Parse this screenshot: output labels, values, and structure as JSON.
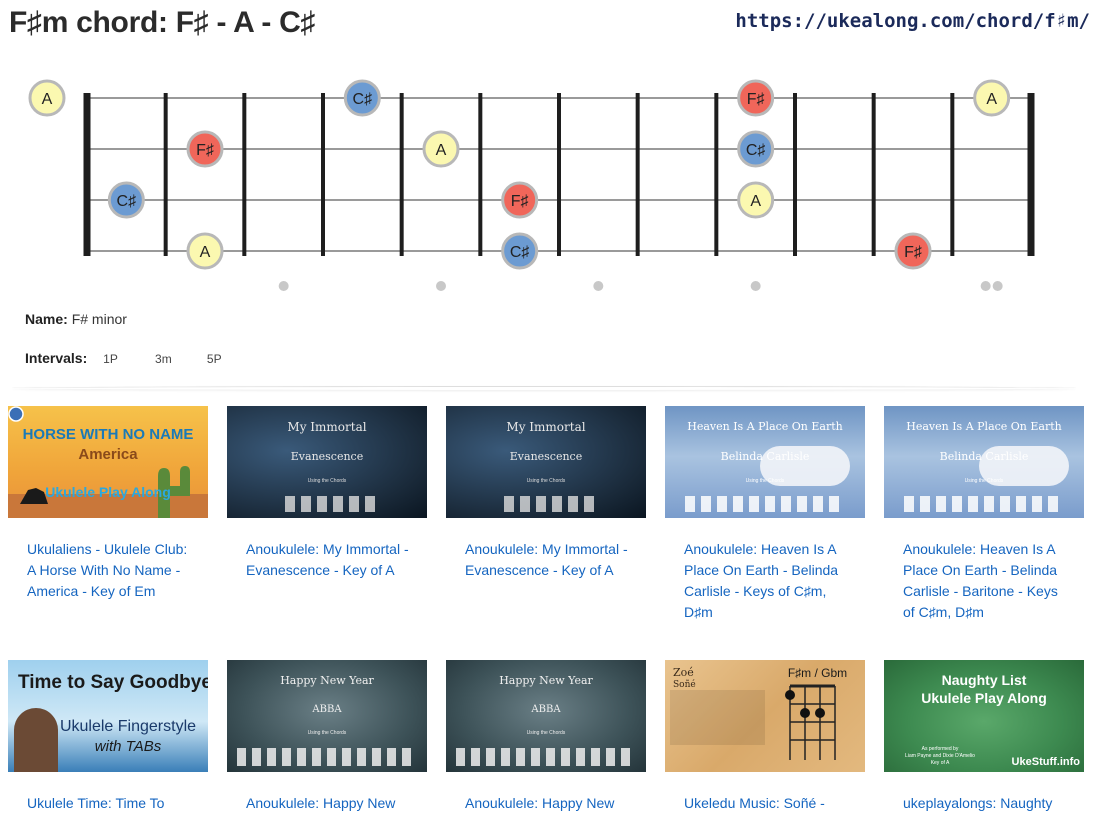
{
  "header": {
    "title": "F♯m chord: F♯ - A - C♯",
    "url": "https://ukealong.com/chord/f♯m/"
  },
  "colors": {
    "root": "#f0665a",
    "third": "#fbf8b0",
    "fifth": "#6c9bd2",
    "link": "#1565c0"
  },
  "fretboard": {
    "strings": 4,
    "frets": 12,
    "note_names": {
      "F♯": "F♯",
      "A": "A",
      "C♯": "C♯"
    },
    "notes": [
      {
        "string": 1,
        "fret": 0,
        "note": "A"
      },
      {
        "string": 1,
        "fret": 4,
        "note": "C♯"
      },
      {
        "string": 1,
        "fret": 9,
        "note": "F♯"
      },
      {
        "string": 1,
        "fret": 12,
        "note": "A"
      },
      {
        "string": 2,
        "fret": 2,
        "note": "F♯"
      },
      {
        "string": 2,
        "fret": 5,
        "note": "A"
      },
      {
        "string": 2,
        "fret": 9,
        "note": "C♯"
      },
      {
        "string": 3,
        "fret": 1,
        "note": "C♯"
      },
      {
        "string": 3,
        "fret": 6,
        "note": "F♯"
      },
      {
        "string": 3,
        "fret": 9,
        "note": "A"
      },
      {
        "string": 4,
        "fret": 2,
        "note": "A"
      },
      {
        "string": 4,
        "fret": 6,
        "note": "C♯"
      },
      {
        "string": 4,
        "fret": 11,
        "note": "F♯"
      }
    ],
    "inlay_markers": [
      3,
      5,
      7,
      9,
      12
    ]
  },
  "info": {
    "name_label": "Name:",
    "name_value": "F# minor",
    "intervals_label": "Intervals:",
    "intervals": [
      "1P",
      "3m",
      "5P"
    ]
  },
  "videos": [
    {
      "title": "Ukulaliens - Ukulele Club: A Horse With No Name - America - Key of Em",
      "thumb": {
        "line1": "HORSE WITH NO NAME",
        "line2": "America",
        "line3": "Ukulele Play Along"
      }
    },
    {
      "title": "Anoukulele: My Immortal - Evanescence - Key of A",
      "thumb": {
        "line1": "My Immortal",
        "line2": "Evanescence",
        "line3": "Using the Chords"
      }
    },
    {
      "title": "Anoukulele: My Immortal - Evanescence - Key of A",
      "thumb": {
        "line1": "My Immortal",
        "line2": "Evanescence",
        "line3": "Using the Chords"
      }
    },
    {
      "title": "Anoukulele: Heaven Is A Place On Earth - Belinda Carlisle - Keys of C♯m, D♯m",
      "thumb": {
        "line1": "Heaven Is A Place On Earth",
        "line2": "Belinda Carlisle",
        "line3": "Using the Chords"
      }
    },
    {
      "title": "Anoukulele: Heaven Is A Place On Earth - Belinda Carlisle - Baritone - Keys of C♯m, D♯m",
      "thumb": {
        "line1": "Heaven Is A Place On Earth",
        "line2": "Belinda Carlisle",
        "line3": "Using the Chords"
      }
    },
    {
      "title": "Ukulele Time: Time To",
      "thumb": {
        "line1": "Time to Say Goodbye",
        "line2": "Ukulele Fingerstyle",
        "line3": "with TABs"
      }
    },
    {
      "title": "Anoukulele: Happy New",
      "thumb": {
        "line1": "Happy New Year",
        "line2": "ABBA",
        "line3": "Using the Chords"
      }
    },
    {
      "title": "Anoukulele: Happy New",
      "thumb": {
        "line1": "Happy New Year",
        "line2": "ABBA",
        "line3": "Using the Chords"
      }
    },
    {
      "title": "Ukeledu Music: Soñé -",
      "thumb": {
        "line1": "Zoé",
        "line2": "Soñé",
        "line3": "F♯m / Gbm"
      }
    },
    {
      "title": "ukeplayalongs: Naughty",
      "thumb": {
        "line1": "Naughty List",
        "line2": "Ukulele Play Along",
        "line3": "As performed by",
        "line4": "Liam Payne and Dixie D'Amelio",
        "line5": "Key of A",
        "line6": "UkeStuff.info"
      }
    }
  ]
}
